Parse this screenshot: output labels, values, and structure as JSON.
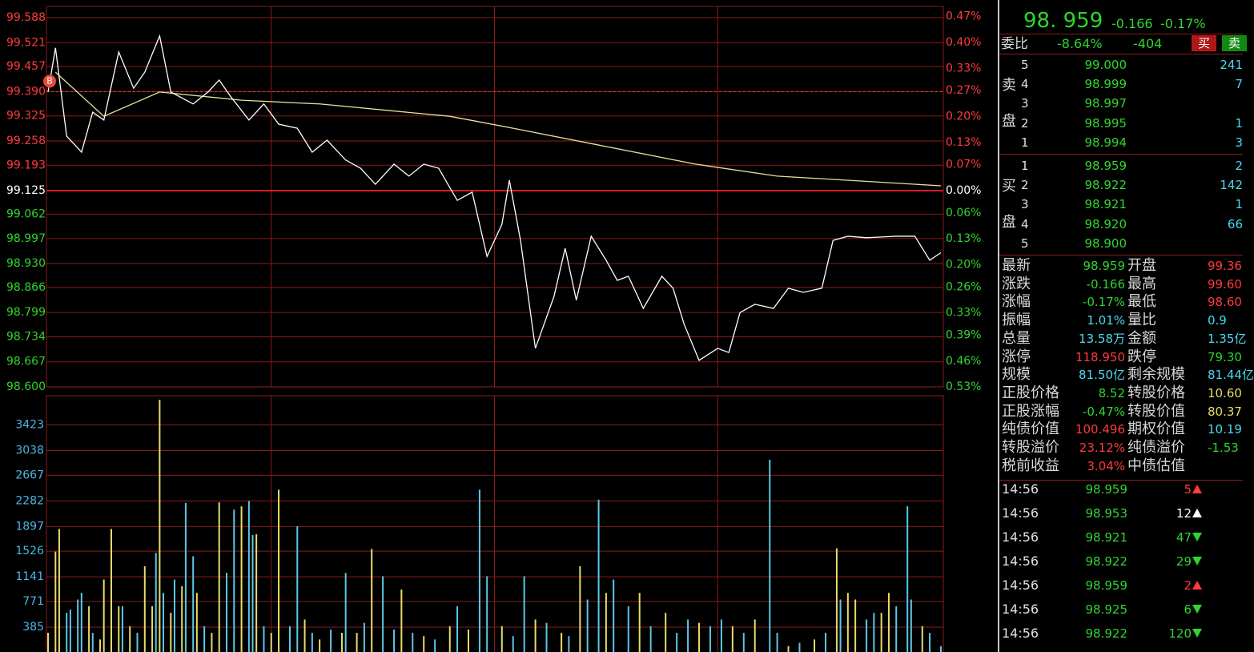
{
  "chart_data": [
    {
      "type": "line",
      "series": [
        {
          "color": "#ffffff",
          "x": [
            0,
            2,
            5,
            9,
            12,
            15,
            19,
            23,
            26,
            30,
            33,
            39,
            43,
            46,
            49,
            54,
            58,
            62,
            67,
            71,
            75,
            80,
            84,
            88,
            93,
            97,
            101,
            105,
            110,
            114,
            118,
            122,
            124,
            127,
            131,
            136,
            139,
            142,
            146,
            150,
            153,
            156,
            160,
            165,
            168,
            171,
            175,
            180,
            183,
            186,
            190,
            195,
            199,
            203,
            208,
            211,
            215,
            220,
            224,
            228,
            233,
            237,
            240
          ],
          "values": [
            99.389,
            99.507,
            99.271,
            99.228,
            99.335,
            99.314,
            99.496,
            99.399,
            99.442,
            99.539,
            99.389,
            99.357,
            99.389,
            99.421,
            99.378,
            99.314,
            99.357,
            99.303,
            99.292,
            99.228,
            99.26,
            99.207,
            99.185,
            99.142,
            99.196,
            99.164,
            99.196,
            99.185,
            99.099,
            99.121,
            98.949,
            99.035,
            99.153,
            98.992,
            98.703,
            98.842,
            98.971,
            98.832,
            99.003,
            98.939,
            98.885,
            98.896,
            98.81,
            98.896,
            98.864,
            98.767,
            98.671,
            98.703,
            98.692,
            98.799,
            98.821,
            98.81,
            98.864,
            98.853,
            98.864,
            98.992,
            99.003,
            98.999,
            99.001,
            99.003,
            99.003,
            98.939,
            98.959
          ]
        },
        {
          "color": "#e8e29a",
          "x": [
            2,
            15,
            30,
            52,
            73,
            108,
            125,
            147,
            174,
            196,
            240
          ],
          "values": [
            99.442,
            99.324,
            99.389,
            99.367,
            99.357,
            99.324,
            99.292,
            99.249,
            99.196,
            99.164,
            99.138
          ]
        }
      ],
      "xlim": [
        0,
        240
      ],
      "xticks": [
        60,
        120,
        180
      ],
      "ylim": [
        98.6,
        99.588
      ],
      "yticks": [
        99.588,
        99.521,
        99.457,
        {
          "value": 99.39,
          "label": "99.390"
        },
        99.325,
        99.258,
        99.193,
        99.125,
        99.062,
        98.997,
        {
          "value": 98.93,
          "label": "98.930"
        },
        98.866,
        98.799,
        98.734,
        98.667,
        {
          "value": 98.6,
          "label": "98.600"
        }
      ],
      "y2lim": [
        -0.5296,
        0.4671
      ],
      "y2ticks": [
        {
          "value": 0.47,
          "label": "0.47%"
        },
        {
          "value": 0.4,
          "label": "0.40%"
        },
        {
          "value": 0.33,
          "label": "0.33%"
        },
        {
          "value": 0.27,
          "label": "0.27%"
        },
        {
          "value": 0.2,
          "label": "0.20%"
        },
        {
          "value": 0.13,
          "label": "0.13%"
        },
        {
          "value": 0.07,
          "label": "0.07%"
        },
        {
          "value": 0,
          "label": "0.00%"
        },
        {
          "value": -0.06,
          "label": "0.06%"
        },
        {
          "value": -0.13,
          "label": "0.13%"
        },
        {
          "value": -0.2,
          "label": "0.20%"
        },
        {
          "value": -0.26,
          "label": "0.26%"
        },
        {
          "value": -0.33,
          "label": "0.33%"
        },
        {
          "value": -0.39,
          "label": "0.39%"
        },
        {
          "value": -0.46,
          "label": "0.46%"
        },
        {
          "value": -0.53,
          "label": "0.53%"
        }
      ],
      "grid": true,
      "hline": 99.39,
      "up_color": "#ff3b3b",
      "down_color": "#2fd52f",
      "annotations": [
        {
          "text": "B",
          "x": 0,
          "y": 99.39
        }
      ]
    },
    {
      "type": "bar",
      "x": [
        0,
        2,
        3,
        5,
        6,
        8,
        9,
        11,
        12,
        14,
        15,
        17,
        19,
        20,
        22,
        24,
        26,
        28,
        29,
        30,
        31,
        33,
        34,
        36,
        37,
        39,
        40,
        42,
        44,
        46,
        48,
        50,
        52,
        54,
        55,
        56,
        58,
        60,
        62,
        65,
        67,
        69,
        71,
        73,
        76,
        79,
        80,
        83,
        85,
        87,
        90,
        93,
        95,
        98,
        101,
        104,
        108,
        110,
        113,
        116,
        118,
        122,
        125,
        128,
        131,
        134,
        138,
        140,
        143,
        145,
        148,
        150,
        152,
        156,
        159,
        162,
        166,
        169,
        172,
        175,
        178,
        181,
        184,
        187,
        190,
        194,
        196,
        199,
        202,
        206,
        209,
        212,
        213,
        215,
        217,
        220,
        222,
        224,
        226,
        228,
        231,
        232,
        235,
        237,
        240
      ],
      "values": [
        300,
        1520,
        1860,
        600,
        650,
        800,
        900,
        700,
        300,
        200,
        1100,
        1860,
        700,
        700,
        400,
        300,
        1300,
        700,
        1500,
        3800,
        900,
        600,
        1100,
        1000,
        2250,
        1450,
        900,
        400,
        300,
        2260,
        1200,
        2150,
        2200,
        2280,
        1770,
        1780,
        400,
        300,
        2450,
        400,
        1900,
        500,
        300,
        200,
        350,
        300,
        1200,
        300,
        450,
        1560,
        1150,
        350,
        950,
        300,
        250,
        200,
        400,
        700,
        350,
        2450,
        1150,
        400,
        250,
        1150,
        500,
        450,
        300,
        250,
        1300,
        800,
        2300,
        900,
        1100,
        700,
        900,
        400,
        600,
        300,
        500,
        450,
        400,
        500,
        400,
        300,
        500,
        2900,
        300,
        100,
        150,
        200,
        300,
        1570,
        800,
        900,
        800,
        500,
        600,
        600,
        900,
        700,
        2200,
        800,
        400,
        300,
        100
      ],
      "colors": [
        "#e8dc6a",
        "#e8dc6a",
        "#e8dc6a",
        "#5ac8e6",
        "#5ac8e6",
        "#5ac8e6",
        "#5ac8e6",
        "#e8dc6a",
        "#5ac8e6",
        "#e8dc6a",
        "#e8dc6a",
        "#e8dc6a",
        "#e8dc6a",
        "#5ac8e6",
        "#e8dc6a",
        "#5ac8e6",
        "#e8dc6a",
        "#e8dc6a",
        "#5ac8e6",
        "#e8dc6a",
        "#5ac8e6",
        "#e8dc6a",
        "#5ac8e6",
        "#e8dc6a",
        "#5ac8e6",
        "#5ac8e6",
        "#e8dc6a",
        "#5ac8e6",
        "#e8dc6a",
        "#e8dc6a",
        "#5ac8e6",
        "#5ac8e6",
        "#e8dc6a",
        "#5ac8e6",
        "#5ac8e6",
        "#e8dc6a",
        "#5ac8e6",
        "#e8dc6a",
        "#e8dc6a",
        "#5ac8e6",
        "#5ac8e6",
        "#e8dc6a",
        "#5ac8e6",
        "#e8dc6a",
        "#5ac8e6",
        "#e8dc6a",
        "#5ac8e6",
        "#e8dc6a",
        "#5ac8e6",
        "#e8dc6a",
        "#5ac8e6",
        "#5ac8e6",
        "#e8dc6a",
        "#5ac8e6",
        "#e8dc6a",
        "#5ac8e6",
        "#e8dc6a",
        "#5ac8e6",
        "#e8dc6a",
        "#5ac8e6",
        "#5ac8e6",
        "#e8dc6a",
        "#5ac8e6",
        "#5ac8e6",
        "#e8dc6a",
        "#5ac8e6",
        "#e8dc6a",
        "#5ac8e6",
        "#e8dc6a",
        "#5ac8e6",
        "#5ac8e6",
        "#e8dc6a",
        "#5ac8e6",
        "#5ac8e6",
        "#e8dc6a",
        "#5ac8e6",
        "#e8dc6a",
        "#5ac8e6",
        "#5ac8e6",
        "#e8dc6a",
        "#5ac8e6",
        "#5ac8e6",
        "#e8dc6a",
        "#5ac8e6",
        "#e8dc6a",
        "#5ac8e6",
        "#5ac8e6",
        "#e8dc6a",
        "#5ac8e6",
        "#e8dc6a",
        "#5ac8e6",
        "#e8dc6a",
        "#5ac8e6",
        "#e8dc6a",
        "#e8dc6a",
        "#5ac8e6",
        "#5ac8e6",
        "#e8dc6a",
        "#e8dc6a",
        "#5ac8e6",
        "#5ac8e6",
        "#5ac8e6",
        "#e8dc6a",
        "#5ac8e6",
        "#5ac8e6"
      ],
      "xlim": [
        0,
        240
      ],
      "xticks": [
        60,
        120,
        180
      ],
      "ylim": [
        0,
        3850
      ],
      "yticks": [
        385,
        771,
        1141,
        1526,
        1897,
        2282,
        2667,
        3038,
        3423
      ],
      "grid": true,
      "tick_color": "#4bb8e6"
    }
  ],
  "quote": {
    "price": "98. 959",
    "change": "-0.166",
    "change_pct": "-0.17%",
    "ratio": {
      "label": "委比",
      "pct": "-8.64%",
      "diff": "-404",
      "buy": "买",
      "sell": "卖"
    },
    "ask_label": [
      "卖",
      "盘"
    ],
    "bid_label": [
      "买",
      "盘"
    ],
    "asks": [
      [
        "5",
        "99.000",
        "241"
      ],
      [
        "4",
        "98.999",
        "7"
      ],
      [
        "3",
        "98.997"
      ],
      [
        "2",
        "98.995",
        "1"
      ],
      [
        "1",
        "98.994",
        "3"
      ]
    ],
    "bids": [
      [
        "1",
        "98.959",
        "2"
      ],
      [
        "2",
        "98.922",
        "142"
      ],
      [
        "3",
        "98.921",
        "1"
      ],
      [
        "4",
        "98.920",
        "66"
      ],
      [
        "5",
        "98.900"
      ]
    ],
    "stats": [
      {
        "k1": "最新",
        "v1": "98.959",
        "c1": "#2fd52f",
        "k2": "开盘",
        "v2": "99.36",
        "c2": "#ff3b3b"
      },
      {
        "k1": "涨跌",
        "v1": "-0.166",
        "c1": "#2fd52f",
        "k2": "最高",
        "v2": "99.60",
        "c2": "#ff3b3b"
      },
      {
        "k1": "涨幅",
        "v1": "-0.17%",
        "c1": "#2fd52f",
        "k2": "最低",
        "v2": "98.60",
        "c2": "#ff3b3b"
      },
      {
        "k1": "振幅",
        "v1": "1.01%",
        "c1": "#4bd8f0",
        "k2": "量比",
        "v2": "0.9",
        "c2": "#4bd8f0"
      },
      {
        "k1": "总量",
        "v1": "13.58万",
        "c1": "#4bd8f0",
        "k2": "金额",
        "v2": "1.35亿",
        "c2": "#4bd8f0"
      },
      {
        "k1": "涨停",
        "v1": "118.950",
        "c1": "#ff3b3b",
        "k2": "跌停",
        "v2": "79.30",
        "c2": "#2fd52f"
      },
      {
        "k1": "规模",
        "v1": "81.50亿",
        "c1": "#4bd8f0",
        "k2": "剩余规模",
        "v2": "81.44亿",
        "c2": "#4bd8f0"
      },
      {
        "k1": "正股价格",
        "v1": "8.52",
        "c1": "#2fd52f",
        "k2": "转股价格",
        "v2": "10.60",
        "c2": "#e8dc6a"
      },
      {
        "k1": "正股涨幅",
        "v1": "-0.47%",
        "c1": "#2fd52f",
        "k2": "转股价值",
        "v2": "80.37",
        "c2": "#e8dc6a"
      },
      {
        "k1": "纯债价值",
        "v1": "100.496",
        "c1": "#ff3b3b",
        "k2": "期权价值",
        "v2": "10.19",
        "c2": "#4bd8f0"
      },
      {
        "k1": "转股溢价",
        "v1": "23.12%",
        "c1": "#ff3b3b",
        "k2": "纯债溢价",
        "v2": "-1.53",
        "c2": "#2fd52f"
      },
      {
        "k1": "税前收益",
        "v1": "3.04%",
        "c1": "#ff3b3b",
        "k2": "中债估值"
      }
    ],
    "trades": [
      {
        "time": "14:56",
        "price": "98.959",
        "vol": "5",
        "dir": "up",
        "color": "#ff3b3b"
      },
      {
        "time": "14:56",
        "price": "98.953",
        "vol": "12",
        "dir": "up",
        "color": "#ffffff"
      },
      {
        "time": "14:56",
        "price": "98.921",
        "vol": "47",
        "dir": "down",
        "color": "#2fd52f"
      },
      {
        "time": "14:56",
        "price": "98.922",
        "vol": "29",
        "dir": "down",
        "color": "#2fd52f"
      },
      {
        "time": "14:56",
        "price": "98.959",
        "vol": "2",
        "dir": "up",
        "color": "#ff3b3b"
      },
      {
        "time": "14:56",
        "price": "98.925",
        "vol": "6",
        "dir": "down",
        "color": "#2fd52f"
      },
      {
        "time": "14:56",
        "price": "98.922",
        "vol": "120",
        "dir": "down",
        "color": "#2fd52f"
      }
    ]
  }
}
